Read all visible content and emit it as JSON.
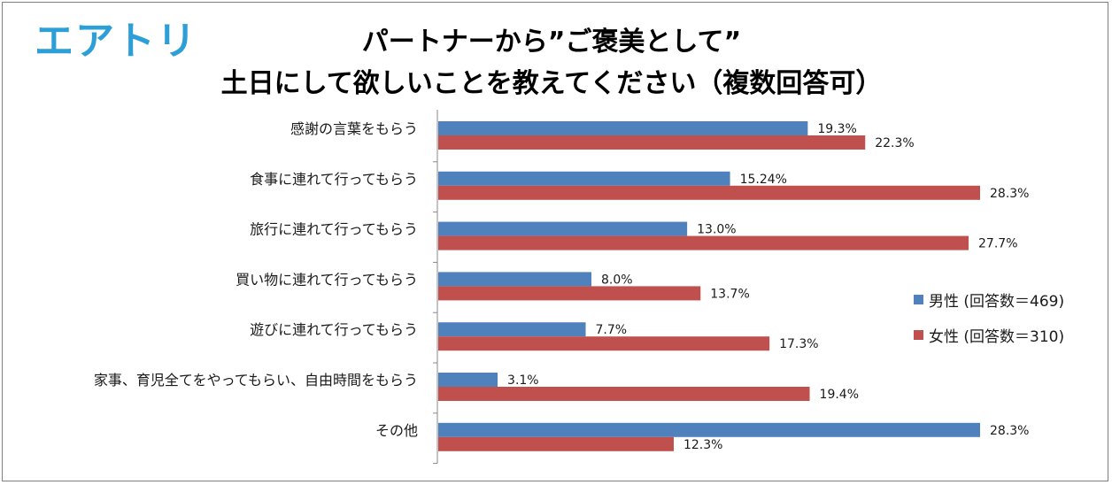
{
  "logo": "エアトリ",
  "title_line1": "パートナーから”ご褒美として”",
  "title_line2": "土日にして欲しいことを教えてください（複数回答可）",
  "colors": {
    "male": "#4f81bd",
    "female": "#c0504d",
    "axis": "#888888"
  },
  "chart_data": {
    "type": "bar",
    "orientation": "horizontal",
    "title": "パートナーから”ご褒美として” 土日にして欲しいことを教えてください（複数回答可）",
    "categories": [
      "感謝の言葉をもらう",
      "食事に連れて行ってもらう",
      "旅行に連れて行ってもらう",
      "買い物に連れて行ってもらう",
      "遊びに連れて行ってもらう",
      "家事、育児全てをやってもらい、自由時間をもらう",
      "その他"
    ],
    "series": [
      {
        "name": "男性 (回答数＝469)",
        "values": [
          19.3,
          15.24,
          13.0,
          8.0,
          7.7,
          3.1,
          28.3
        ],
        "labels": [
          "19.3%",
          "15.24%",
          "13.0%",
          "8.0%",
          "7.7%",
          "3.1%",
          "28.3%"
        ]
      },
      {
        "name": "女性 (回答数＝310)",
        "values": [
          22.3,
          28.3,
          27.7,
          13.7,
          17.3,
          19.4,
          12.3
        ],
        "labels": [
          "22.3%",
          "28.3%",
          "27.7%",
          "13.7%",
          "17.3%",
          "19.4%",
          "12.3%"
        ]
      }
    ],
    "xlim": [
      0,
      30
    ],
    "grid": false,
    "legend_position": "right"
  }
}
